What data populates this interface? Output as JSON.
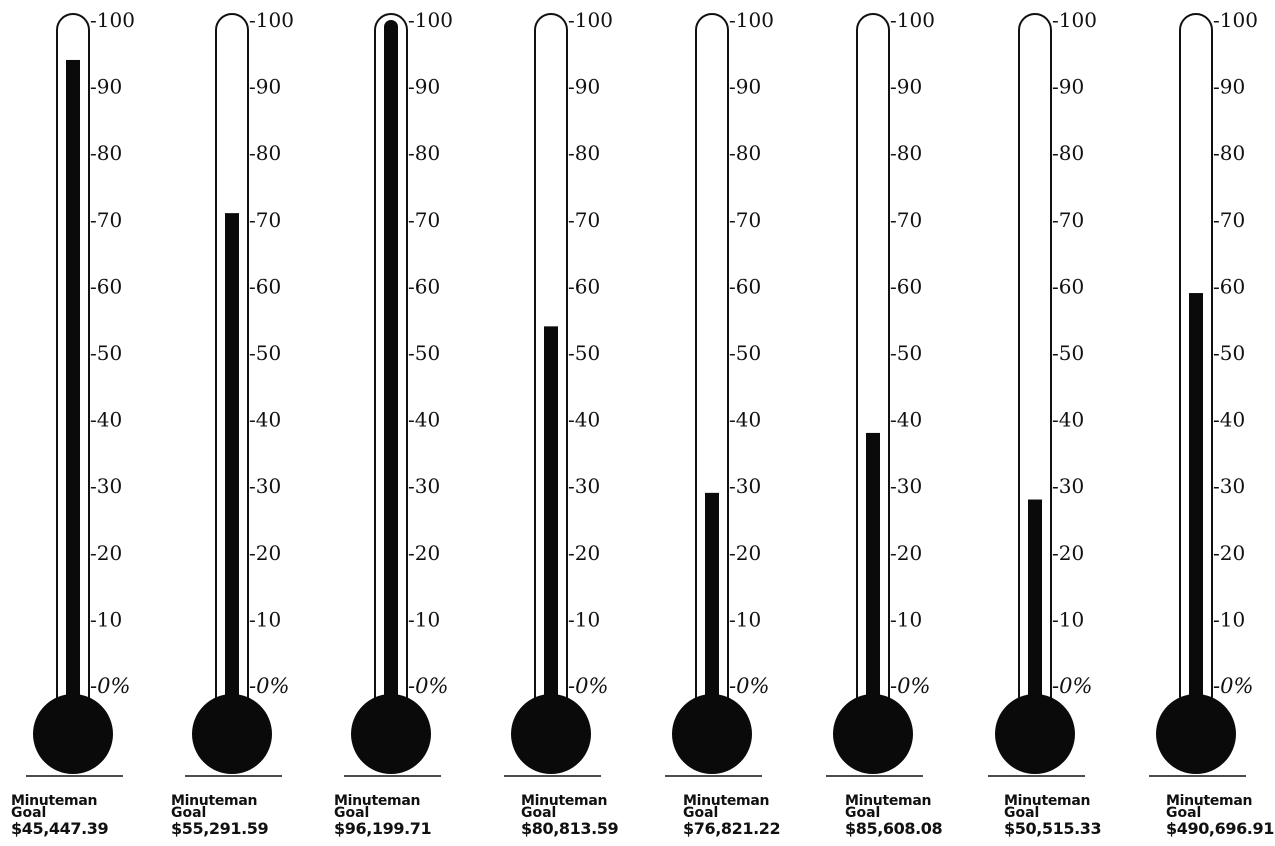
{
  "chart_data": {
    "type": "thermometer",
    "tick_labels": [
      "-100",
      "-90",
      "-80",
      "-70",
      "-60",
      "-50",
      "-40",
      "-30",
      "-20",
      "-10",
      "-0%"
    ],
    "range": [
      0,
      100
    ],
    "unit": "%",
    "thermometers": [
      {
        "label": "Minuteman",
        "sublabel": "Goal",
        "amount": "$45,447.39",
        "value": 94
      },
      {
        "label": "Minuteman",
        "sublabel": "Goal",
        "amount": "$55,291.59",
        "value": 71
      },
      {
        "label": "Minuteman",
        "sublabel": "Goal",
        "amount": "$96,199.71",
        "value": 100
      },
      {
        "label": "Minuteman",
        "sublabel": "Goal",
        "amount": "$80,813.59",
        "value": 54
      },
      {
        "label": "Minuteman",
        "sublabel": "Goal",
        "amount": "$76,821.22",
        "value": 29
      },
      {
        "label": "Minuteman",
        "sublabel": "Goal",
        "amount": "$85,608.08",
        "value": 38
      },
      {
        "label": "Minuteman",
        "sublabel": "Goal",
        "amount": "$50,515.33",
        "value": 28
      },
      {
        "label": "Minuteman",
        "sublabel": "Goal",
        "amount": "$490,696.91",
        "value": 59
      }
    ]
  }
}
